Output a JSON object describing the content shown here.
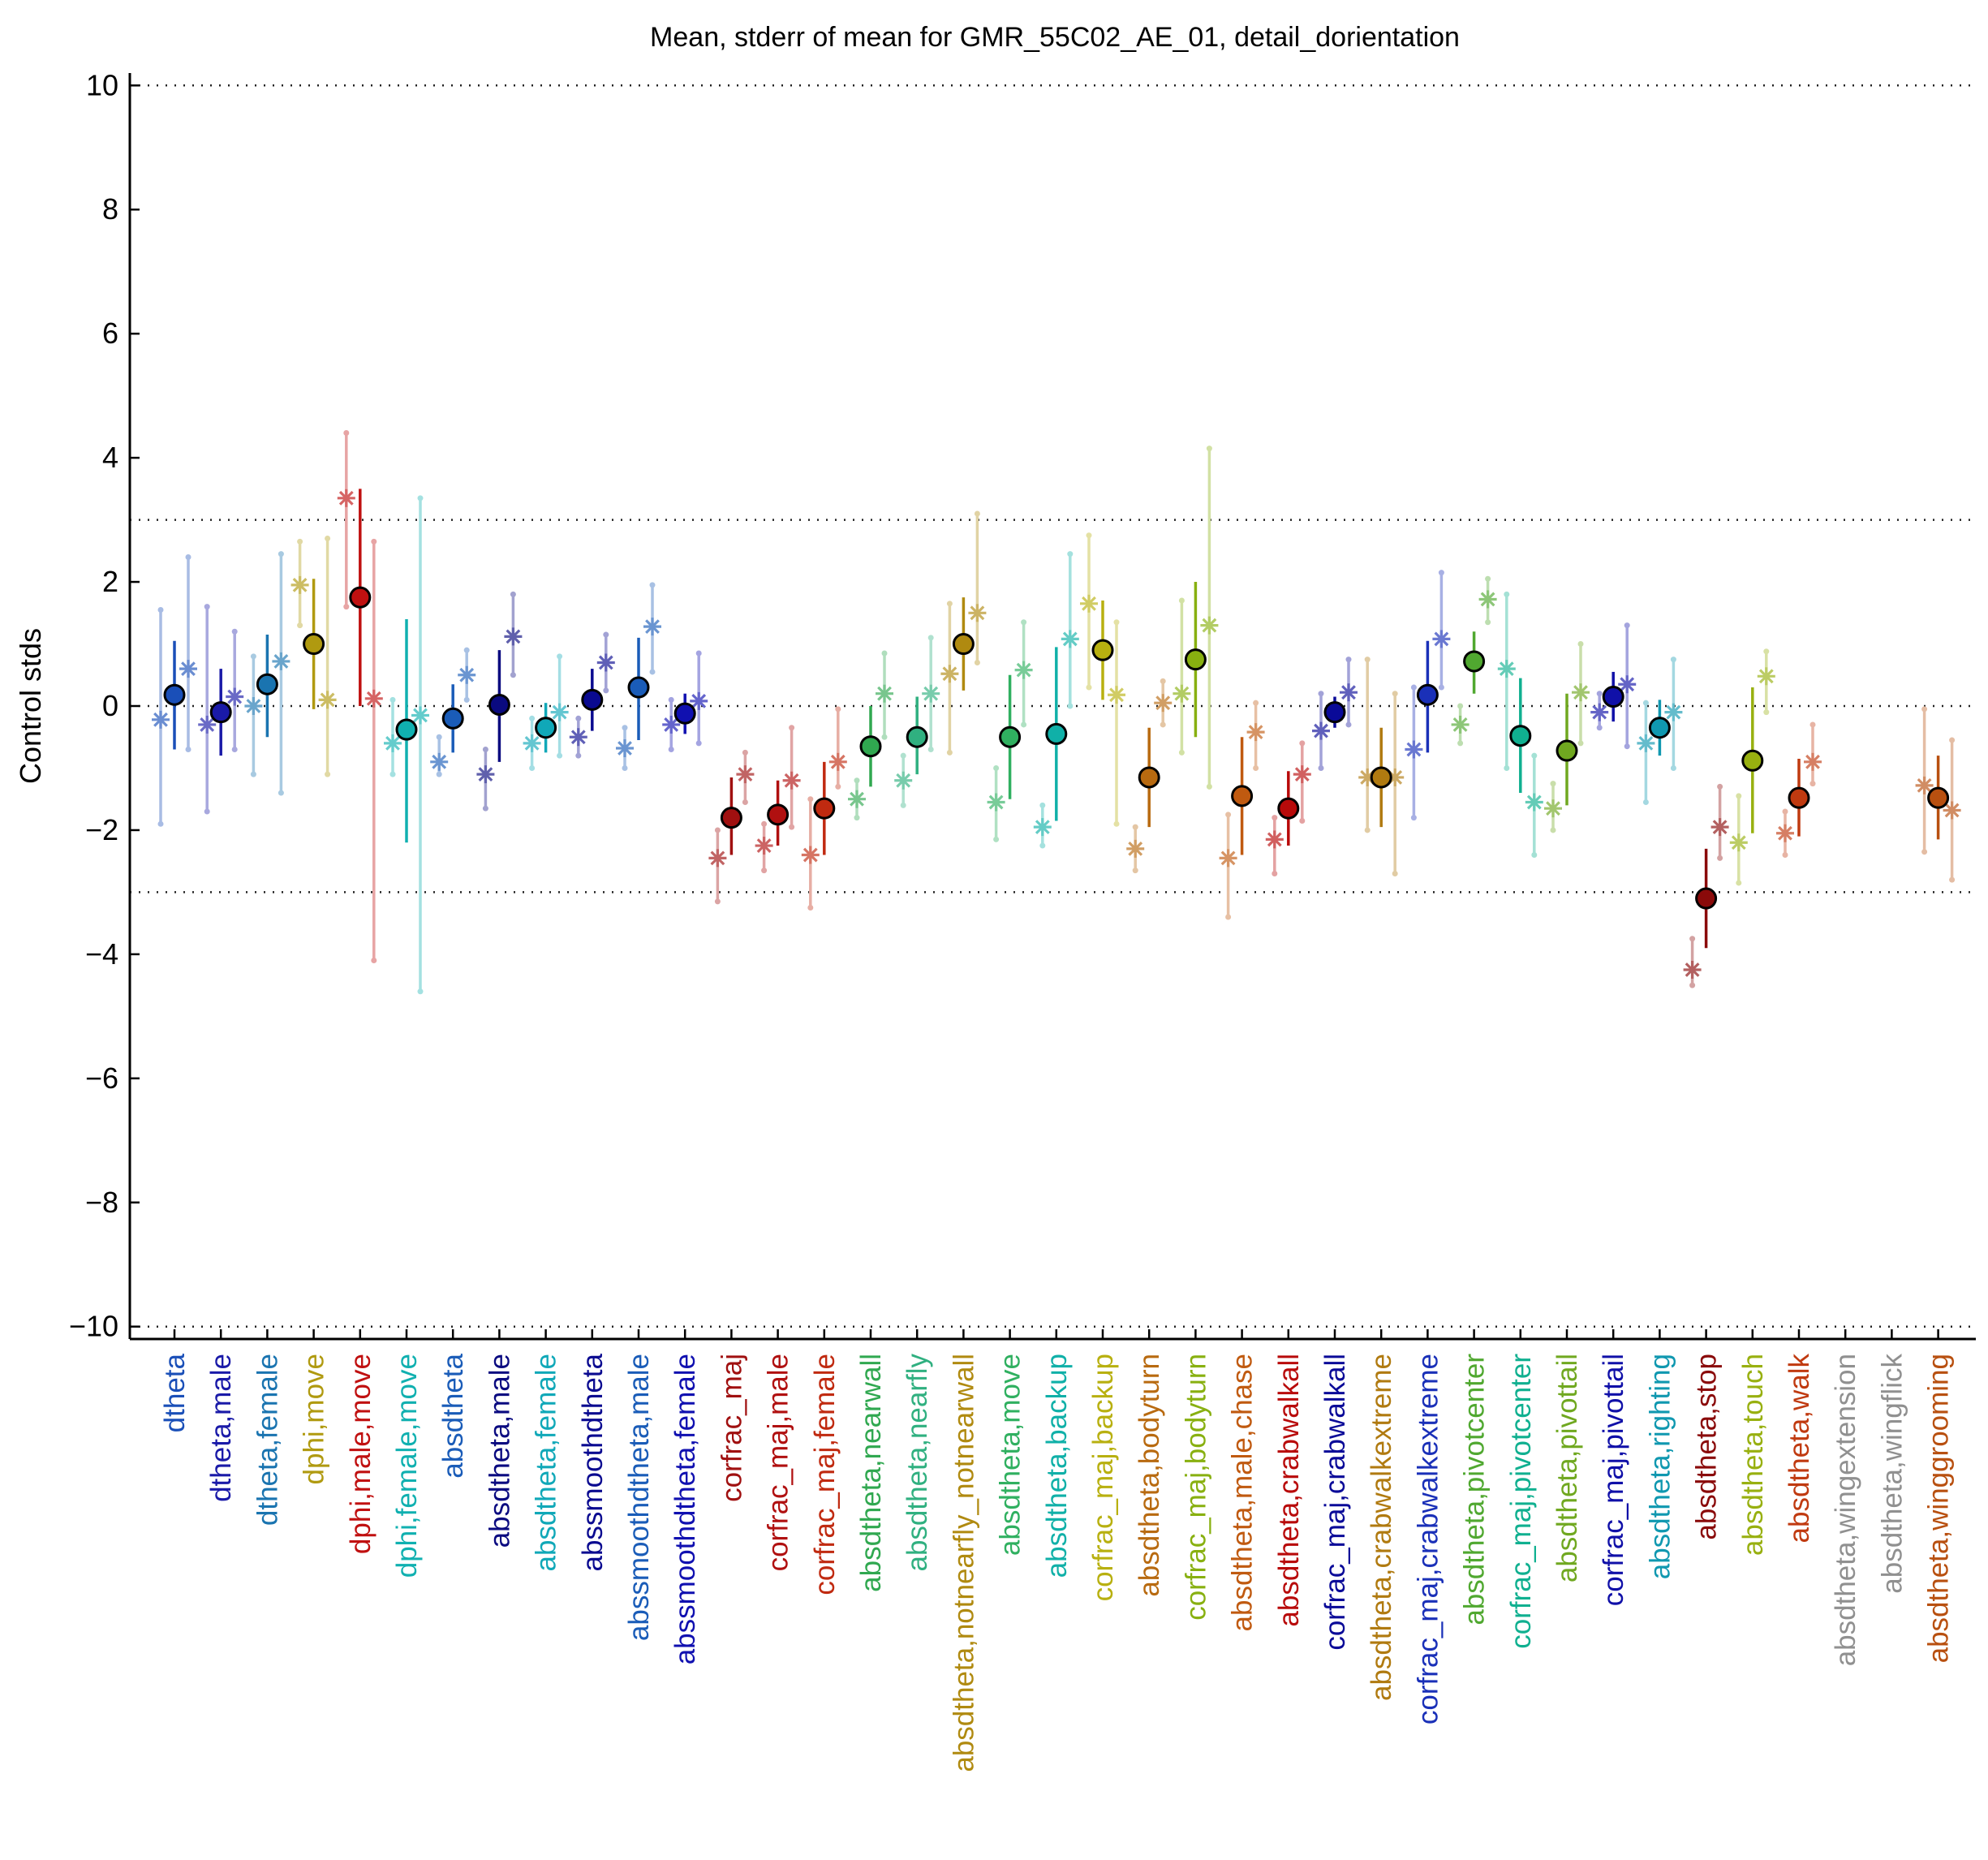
{
  "chart_data": {
    "type": "scatter",
    "title": "Mean, stderr of mean for GMR_55C02_AE_01, detail_dorientation",
    "ylabel": "Control stds",
    "xlabel": "",
    "ylim": [
      -10.2,
      10.2
    ],
    "yticks": [
      {
        "value": 10,
        "label": "10"
      },
      {
        "value": 8,
        "label": "8"
      },
      {
        "value": 6,
        "label": "6"
      },
      {
        "value": 4,
        "label": "4"
      },
      {
        "value": 2,
        "label": "2"
      },
      {
        "value": 0,
        "label": "0"
      },
      {
        "value": -2,
        "label": "−2"
      },
      {
        "value": -4,
        "label": "−4"
      },
      {
        "value": -6,
        "label": "−6"
      },
      {
        "value": -8,
        "label": "−8"
      },
      {
        "value": -10,
        "label": "−10"
      }
    ],
    "reference_lines": [
      10,
      3,
      0,
      -3,
      -10
    ],
    "grid": false,
    "categories": [
      {
        "label": "dtheta",
        "color": "#1a4fb8",
        "mean": 0.18,
        "lo": -0.7,
        "hi": 1.05,
        "s1": -0.22,
        "s1lo": -1.9,
        "s1hi": 1.55,
        "s2": 0.6,
        "s2lo": -0.7,
        "s2hi": 2.4
      },
      {
        "label": "dtheta,male",
        "color": "#1a1aa8",
        "mean": -0.1,
        "lo": -0.8,
        "hi": 0.6,
        "s1": -0.3,
        "s1lo": -1.7,
        "s1hi": 1.6,
        "s2": 0.15,
        "s2lo": -0.7,
        "s2hi": 1.2
      },
      {
        "label": "dtheta,female",
        "color": "#1a74b0",
        "mean": 0.35,
        "lo": -0.5,
        "hi": 1.15,
        "s1": 0.0,
        "s1lo": -1.1,
        "s1hi": 0.8,
        "s2": 0.72,
        "s2lo": -1.4,
        "s2hi": 2.45
      },
      {
        "label": "dphi,move",
        "color": "#b09a10",
        "mean": 1.0,
        "lo": -0.05,
        "hi": 2.05,
        "s1": 1.95,
        "s1lo": 1.3,
        "s1hi": 2.65,
        "s2": 0.1,
        "s2lo": -1.1,
        "s2hi": 2.7
      },
      {
        "label": "dphi,male,move",
        "color": "#c01010",
        "mean": 1.75,
        "lo": 0.0,
        "hi": 3.5,
        "s1": 3.35,
        "s1lo": 1.6,
        "s1hi": 4.4,
        "s2": 0.12,
        "s2lo": -4.1,
        "s2hi": 2.65
      },
      {
        "label": "dphi,female,move",
        "color": "#10b0b0",
        "mean": -0.38,
        "lo": -2.2,
        "hi": 1.4,
        "s1": -0.6,
        "s1lo": -1.1,
        "s1hi": 0.1,
        "s2": -0.15,
        "s2lo": -4.6,
        "s2hi": 3.35
      },
      {
        "label": "absdtheta",
        "color": "#1a5cb8",
        "mean": -0.2,
        "lo": -0.75,
        "hi": 0.35,
        "s1": -0.9,
        "s1lo": -1.1,
        "s1hi": -0.5,
        "s2": 0.5,
        "s2lo": 0.1,
        "s2hi": 0.9
      },
      {
        "label": "absdtheta,male",
        "color": "#0a0a80",
        "mean": 0.02,
        "lo": -0.9,
        "hi": 0.9,
        "s1": -1.1,
        "s1lo": -1.65,
        "s1hi": -0.7,
        "s2": 1.12,
        "s2lo": 0.5,
        "s2hi": 1.8
      },
      {
        "label": "absdtheta,female",
        "color": "#10a8b8",
        "mean": -0.35,
        "lo": -0.75,
        "hi": 0.05,
        "s1": -0.6,
        "s1lo": -1.0,
        "s1hi": -0.2,
        "s2": -0.1,
        "s2lo": -0.8,
        "s2hi": 0.8
      },
      {
        "label": "abssmoothdtheta",
        "color": "#0a0a90",
        "mean": 0.1,
        "lo": -0.4,
        "hi": 0.6,
        "s1": -0.5,
        "s1lo": -0.8,
        "s1hi": -0.2,
        "s2": 0.7,
        "s2lo": 0.25,
        "s2hi": 1.15
      },
      {
        "label": "abssmoothdtheta,male",
        "color": "#1a5cb8",
        "mean": 0.3,
        "lo": -0.55,
        "hi": 1.1,
        "s1": -0.68,
        "s1lo": -1.0,
        "s1hi": -0.35,
        "s2": 1.28,
        "s2lo": 0.55,
        "s2hi": 1.95
      },
      {
        "label": "abssmoothdtheta,female",
        "color": "#1010b0",
        "mean": -0.12,
        "lo": -0.45,
        "hi": 0.2,
        "s1": -0.3,
        "s1lo": -0.7,
        "s1hi": 0.1,
        "s2": 0.08,
        "s2lo": -0.6,
        "s2hi": 0.85
      },
      {
        "label": "corfrac_maj",
        "color": "#a01010",
        "mean": -1.8,
        "lo": -2.4,
        "hi": -1.15,
        "s1": -2.45,
        "s1lo": -3.15,
        "s1hi": -2.0,
        "s2": -1.1,
        "s2lo": -1.55,
        "s2hi": -0.75
      },
      {
        "label": "corfrac_maj,male",
        "color": "#b01010",
        "mean": -1.75,
        "lo": -2.25,
        "hi": -1.2,
        "s1": -2.25,
        "s1lo": -2.65,
        "s1hi": -1.9,
        "s2": -1.2,
        "s2lo": -1.95,
        "s2hi": -0.35
      },
      {
        "label": "corfrac_maj,female",
        "color": "#c02a10",
        "mean": -1.65,
        "lo": -2.4,
        "hi": -0.9,
        "s1": -2.4,
        "s1lo": -3.25,
        "s1hi": -1.5,
        "s2": -0.9,
        "s2lo": -1.3,
        "s2hi": -0.05
      },
      {
        "label": "absdtheta,nearwall",
        "color": "#30a850",
        "mean": -0.65,
        "lo": -1.3,
        "hi": 0.0,
        "s1": -1.5,
        "s1lo": -1.8,
        "s1hi": -1.2,
        "s2": 0.2,
        "s2lo": -0.5,
        "s2hi": 0.85
      },
      {
        "label": "absdtheta,nearfly",
        "color": "#30b080",
        "mean": -0.5,
        "lo": -1.1,
        "hi": 0.15,
        "s1": -1.2,
        "s1lo": -1.6,
        "s1hi": -0.8,
        "s2": 0.2,
        "s2lo": -0.7,
        "s2hi": 1.1
      },
      {
        "label": "absdtheta,notnearfly_notnearwall",
        "color": "#b08a10",
        "mean": 1.0,
        "lo": 0.25,
        "hi": 1.75,
        "s1": 0.52,
        "s1lo": -0.75,
        "s1hi": 1.65,
        "s2": 1.5,
        "s2lo": 0.7,
        "s2hi": 3.1
      },
      {
        "label": "absdtheta,move",
        "color": "#30b060",
        "mean": -0.5,
        "lo": -1.5,
        "hi": 0.5,
        "s1": -1.55,
        "s1lo": -2.15,
        "s1hi": -1.0,
        "s2": 0.58,
        "s2lo": -0.3,
        "s2hi": 1.35
      },
      {
        "label": "absdtheta,backup",
        "color": "#10b0a8",
        "mean": -0.45,
        "lo": -1.85,
        "hi": 0.95,
        "s1": -1.95,
        "s1lo": -2.25,
        "s1hi": -1.6,
        "s2": 1.08,
        "s2lo": 0.0,
        "s2hi": 2.45
      },
      {
        "label": "corfrac_maj,backup",
        "color": "#b8b010",
        "mean": 0.9,
        "lo": 0.1,
        "hi": 1.7,
        "s1": 1.65,
        "s1lo": 0.3,
        "s1hi": 2.75,
        "s2": 0.18,
        "s2lo": -1.9,
        "s2hi": 1.35
      },
      {
        "label": "absdtheta,bodyturn",
        "color": "#b86a10",
        "mean": -1.15,
        "lo": -1.95,
        "hi": -0.35,
        "s1": -2.3,
        "s1lo": -2.65,
        "s1hi": -1.95,
        "s2": 0.05,
        "s2lo": -0.3,
        "s2hi": 0.4
      },
      {
        "label": "corfrac_maj,bodyturn",
        "color": "#88b010",
        "mean": 0.75,
        "lo": -0.5,
        "hi": 2.0,
        "s1": 0.2,
        "s1lo": -0.75,
        "s1hi": 1.7,
        "s2": 1.3,
        "s2lo": -1.3,
        "s2hi": 4.15
      },
      {
        "label": "absdtheta,male,chase",
        "color": "#c05a10",
        "mean": -1.45,
        "lo": -2.4,
        "hi": -0.5,
        "s1": -2.45,
        "s1lo": -3.4,
        "s1hi": -1.75,
        "s2": -0.42,
        "s2lo": -1.0,
        "s2hi": 0.05
      },
      {
        "label": "absdtheta,crabwalkall",
        "color": "#b80a0a",
        "mean": -1.65,
        "lo": -2.25,
        "hi": -1.05,
        "s1": -2.15,
        "s1lo": -2.7,
        "s1hi": -1.8,
        "s2": -1.1,
        "s2lo": -1.85,
        "s2hi": -0.6
      },
      {
        "label": "corfrac_maj,crabwalkall",
        "color": "#0a0a98",
        "mean": -0.1,
        "lo": -0.35,
        "hi": 0.15,
        "s1": -0.4,
        "s1lo": -1.0,
        "s1hi": 0.2,
        "s2": 0.22,
        "s2lo": -0.3,
        "s2hi": 0.75
      },
      {
        "label": "absdtheta,crabwalkextreme",
        "color": "#b07a10",
        "mean": -1.15,
        "lo": -1.95,
        "hi": -0.35,
        "s1": -1.15,
        "s1lo": -2.0,
        "s1hi": 0.75,
        "s2": -1.15,
        "s2lo": -2.7,
        "s2hi": 0.2
      },
      {
        "label": "corfrac_maj,crabwalkextreme",
        "color": "#1a30b8",
        "mean": 0.18,
        "lo": -0.75,
        "hi": 1.05,
        "s1": -0.7,
        "s1lo": -1.8,
        "s1hi": 0.3,
        "s2": 1.08,
        "s2lo": 0.3,
        "s2hi": 2.15
      },
      {
        "label": "absdtheta,pivotcenter",
        "color": "#50a830",
        "mean": 0.72,
        "lo": 0.2,
        "hi": 1.2,
        "s1": -0.3,
        "s1lo": -0.6,
        "s1hi": 0.0,
        "s2": 1.72,
        "s2lo": 1.35,
        "s2hi": 2.05
      },
      {
        "label": "corfrac_maj,pivotcenter",
        "color": "#10b090",
        "mean": -0.48,
        "lo": -1.4,
        "hi": 0.45,
        "s1": 0.6,
        "s1lo": -1.0,
        "s1hi": 1.8,
        "s2": -1.55,
        "s2lo": -2.4,
        "s2hi": -0.8
      },
      {
        "label": "absdtheta,pivottail",
        "color": "#70a820",
        "mean": -0.72,
        "lo": -1.6,
        "hi": 0.2,
        "s1": -1.65,
        "s1lo": -2.0,
        "s1hi": -1.25,
        "s2": 0.22,
        "s2lo": -0.6,
        "s2hi": 1.0
      },
      {
        "label": "corfrac_maj,pivottail",
        "color": "#1010a8",
        "mean": 0.15,
        "lo": -0.25,
        "hi": 0.55,
        "s1": -0.1,
        "s1lo": -0.35,
        "s1hi": 0.2,
        "s2": 0.35,
        "s2lo": -0.65,
        "s2hi": 1.3
      },
      {
        "label": "absdtheta,righting",
        "color": "#1098b0",
        "mean": -0.35,
        "lo": -0.8,
        "hi": 0.1,
        "s1": -0.6,
        "s1lo": -1.55,
        "s1hi": 0.05,
        "s2": -0.1,
        "s2lo": -1.0,
        "s2hi": 0.75
      },
      {
        "label": "absdtheta,stop",
        "color": "#8a0a0a",
        "mean": -3.1,
        "lo": -3.9,
        "hi": -2.3,
        "s1": -4.25,
        "s1lo": -4.5,
        "s1hi": -3.75,
        "s2": -1.95,
        "s2lo": -2.45,
        "s2hi": -1.3
      },
      {
        "label": "absdtheta,touch",
        "color": "#98b010",
        "mean": -0.88,
        "lo": -2.05,
        "hi": 0.3,
        "s1": -2.2,
        "s1lo": -2.85,
        "s1hi": -1.45,
        "s2": 0.48,
        "s2lo": -0.1,
        "s2hi": 0.88
      },
      {
        "label": "absdtheta,walk",
        "color": "#c03a10",
        "mean": -1.48,
        "lo": -2.1,
        "hi": -0.85,
        "s1": -2.05,
        "s1lo": -2.4,
        "s1hi": -1.7,
        "s2": -0.9,
        "s2lo": -1.25,
        "s2hi": -0.3
      },
      {
        "label": "absdtheta,wingextension",
        "color": "#909090",
        "mean": null
      },
      {
        "label": "absdtheta,wingflick",
        "color": "#909090",
        "mean": null
      },
      {
        "label": "absdtheta,winggrooming",
        "color": "#b85010",
        "mean": -1.48,
        "lo": -2.15,
        "hi": -0.8,
        "s1": -1.28,
        "s1lo": -2.35,
        "s1hi": -0.05,
        "s2": -1.68,
        "s2lo": -2.8,
        "s2hi": -0.55
      }
    ]
  }
}
